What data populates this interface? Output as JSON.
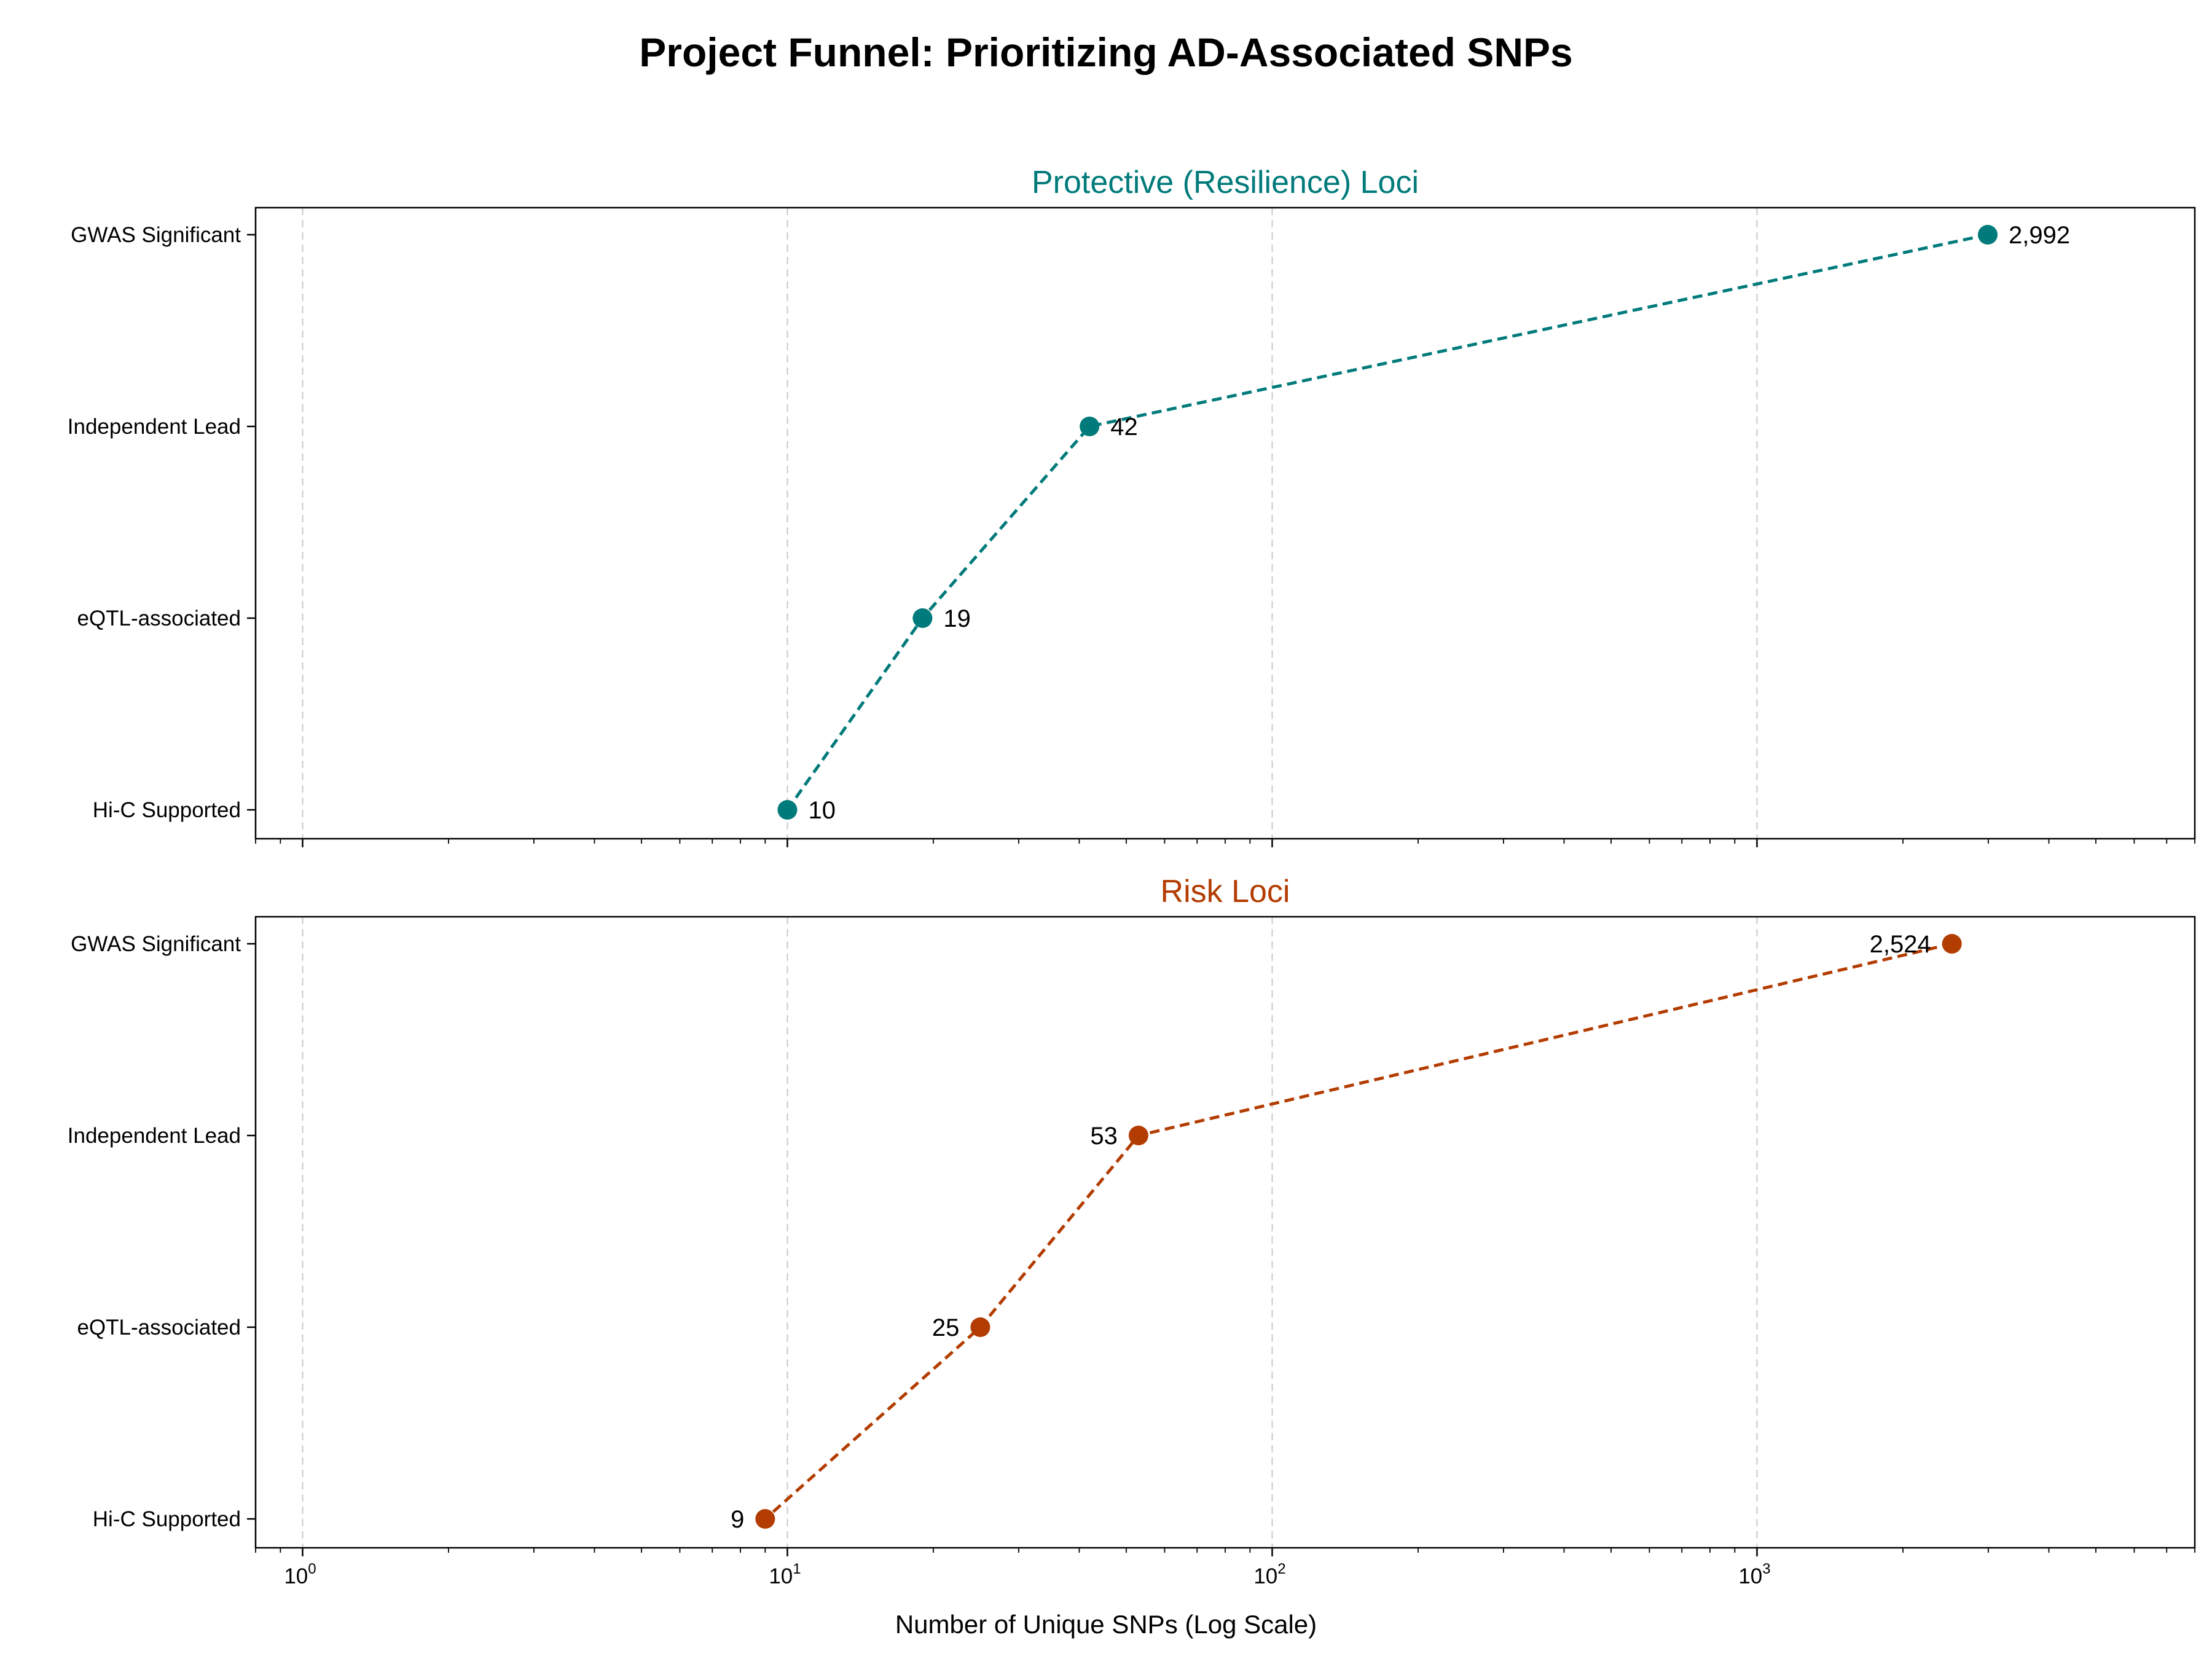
{
  "figure": {
    "title": "Project Funnel: Prioritizing AD-Associated SNPs"
  },
  "chart_data": {
    "type": "line",
    "title": "Project Funnel: Prioritizing AD-Associated SNPs",
    "xlabel": "Number of Unique SNPs (Log Scale)",
    "xscale": "log",
    "xlim": [
      0.8,
      8000
    ],
    "x_ticks": [
      {
        "base": "10",
        "exp": "0"
      },
      {
        "base": "10",
        "exp": "1"
      },
      {
        "base": "10",
        "exp": "2"
      },
      {
        "base": "10",
        "exp": "3"
      }
    ],
    "grid": "x-major, dashed",
    "shared_x_axis": true,
    "categories": [
      "GWAS Significant",
      "Independent Lead",
      "eQTL-associated",
      "Hi-C Supported"
    ],
    "panels": [
      {
        "title": "Protective (Resilience) Loci",
        "color": "#007A7A",
        "values": [
          2992,
          42,
          19,
          10
        ],
        "labels": [
          "2,992",
          "42",
          "19",
          "10"
        ],
        "label_side": "right"
      },
      {
        "title": "Risk Loci",
        "color": "#B33C00",
        "values": [
          2524,
          53,
          25,
          9
        ],
        "labels": [
          "2,524",
          "53",
          "25",
          "9"
        ],
        "label_side": "left"
      }
    ]
  }
}
